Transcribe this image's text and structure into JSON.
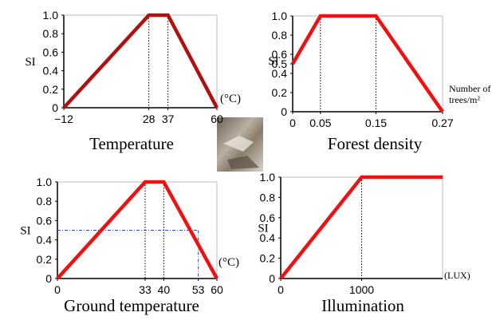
{
  "chart_data": [
    {
      "type": "line",
      "title": "Temperature",
      "y_label": "SI",
      "x_unit": [
        "(°C)"
      ],
      "x": [
        -12,
        28,
        37,
        60
      ],
      "series": [
        {
          "color": "#b01010",
          "values": [
            0,
            1,
            1,
            0
          ]
        }
      ],
      "xlim": [
        -12,
        60
      ],
      "ylim": [
        0,
        1
      ],
      "xticks": [
        {
          "value": -12,
          "label": "−12"
        },
        28,
        37,
        60
      ],
      "yticks": [
        0,
        0.2,
        0.4,
        0.6,
        0.8,
        {
          "value": 1,
          "label": "1.0"
        }
      ]
    },
    {
      "type": "line",
      "title": "Forest density",
      "y_label": "SI",
      "x_unit": [
        "Number of",
        "trees/m²"
      ],
      "x": [
        0,
        0.05,
        0.15,
        0.27
      ],
      "series": [
        {
          "color": "#ee1111",
          "values": [
            0.5,
            1,
            1,
            0
          ]
        }
      ],
      "xlim": [
        0,
        0.27
      ],
      "ylim": [
        0,
        1
      ],
      "xticks": [
        0,
        0.05,
        0.15,
        0.27
      ],
      "yticks": [
        0,
        0.2,
        0.4,
        0.5,
        0.6,
        0.8,
        {
          "value": 1,
          "label": "1.0"
        }
      ]
    },
    {
      "type": "line",
      "title": "Ground temperature",
      "y_label": "SI",
      "x_unit": [
        "(°C)"
      ],
      "x": [
        0,
        33,
        40,
        60
      ],
      "series": [
        {
          "color": "#ee1111",
          "values": [
            0,
            1,
            1,
            0
          ]
        }
      ],
      "xlim": [
        0,
        60
      ],
      "ylim": [
        0,
        1
      ],
      "xticks": [
        0,
        33,
        40,
        53,
        60
      ],
      "yticks": [
        0,
        0.2,
        0.4,
        0.6,
        0.8,
        {
          "value": 1,
          "label": "1.0"
        }
      ],
      "guide": {
        "x": 53,
        "y": 0.5
      }
    },
    {
      "type": "line",
      "title": "Illumination",
      "y_label": "SI",
      "x_unit": [
        "(LUX)"
      ],
      "x": [
        0,
        1000,
        2000
      ],
      "series": [
        {
          "color": "#ee1111",
          "values": [
            0,
            1,
            1
          ]
        }
      ],
      "xlim": [
        0,
        2000
      ],
      "ylim": [
        0,
        1
      ],
      "xticks": [
        0,
        1000
      ],
      "yticks": [
        0,
        0.2,
        0.4,
        0.6,
        0.8,
        {
          "value": 1,
          "label": "1.0"
        }
      ]
    }
  ]
}
